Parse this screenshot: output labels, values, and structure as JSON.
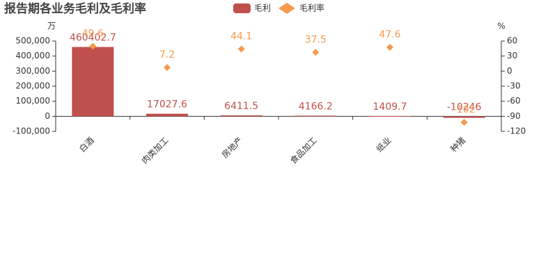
{
  "chart_data": {
    "type": "combo",
    "title": "报告期各业务毛利及毛利率",
    "categories": [
      "白酒",
      "肉类加工",
      "房地产",
      "食品加工",
      "纸业",
      "种猪"
    ],
    "series": [
      {
        "name": "毛利",
        "type": "bar",
        "color": "#c0504d",
        "values": [
          460402.7,
          17027.6,
          6411.5,
          4166.2,
          1409.7,
          -10246
        ]
      },
      {
        "name": "毛利率",
        "type": "scatter",
        "axis": "y2",
        "color": "#f79a4d",
        "values": [
          49.6,
          7.2,
          44.1,
          37.5,
          47.6,
          -102
        ]
      }
    ],
    "ylabel": "万",
    "y2label": "%",
    "ylim": [
      -100000,
      500000
    ],
    "yticks": [
      {
        "value": -100000,
        "label": "-100,000"
      },
      0,
      {
        "value": 100000,
        "label": "100,000"
      },
      {
        "value": 200000,
        "label": "200,000"
      },
      {
        "value": 300000,
        "label": "300,000"
      },
      {
        "value": 400000,
        "label": "400,000"
      },
      {
        "value": 500000,
        "label": "500,000"
      }
    ],
    "y2lim": [
      -120,
      60
    ],
    "y2ticks": [
      -120,
      -90,
      -60,
      -30,
      0,
      30,
      60
    ]
  }
}
